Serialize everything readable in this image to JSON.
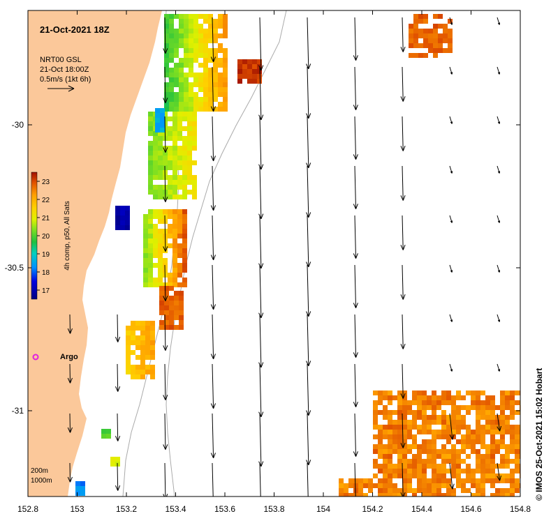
{
  "map": {
    "title": "21-Oct-2021 18Z",
    "legend_lines": [
      "NRT00 GSL",
      "21-Oct 18:00Z",
      "0.5m/s (1kt 6h)"
    ],
    "depth_labels": [
      "200m",
      "1000m"
    ],
    "argo_label": "Argo",
    "credit": "© IMOS 25-Oct-2021 15:02 Hobart",
    "colorbar": {
      "label": "4h comp, p50, All Sats",
      "ticks": [
        23,
        22,
        21,
        20,
        19,
        18,
        17
      ],
      "min": 16.5,
      "max": 23.5
    },
    "x_ticks": [
      "152.8",
      "153",
      "153.2",
      "153.4",
      "153.6",
      "153.8",
      "154",
      "154.2",
      "154.4",
      "154.6",
      "154.8"
    ],
    "y_ticks": [
      "-30",
      "-30.5",
      "-31"
    ],
    "lon_range": [
      152.8,
      154.8
    ],
    "lat_range": [
      -29.6,
      -31.3
    ],
    "colors": {
      "land": "#fbc89a",
      "argo": "#e020e0",
      "contour": "#aaaaaa"
    }
  }
}
